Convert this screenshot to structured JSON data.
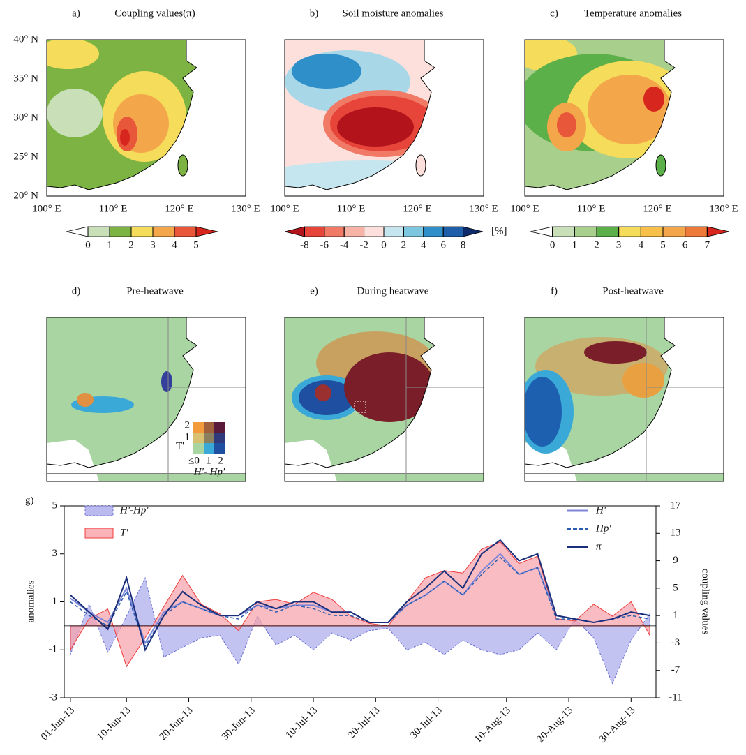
{
  "maps": {
    "lat_labels": [
      "40° N",
      "35° N",
      "30° N",
      "25° N",
      "20° N"
    ],
    "lon_labels": [
      "100° E",
      "110° E",
      "120° E",
      "130° E"
    ],
    "panels": [
      {
        "label": "a)",
        "title": "Coupling  values(π)",
        "colorbar": {
          "colors": [
            "#ffffff",
            "#c8dfb8",
            "#7cb342",
            "#f5dc5a",
            "#f4a64a",
            "#e8573a",
            "#d7261e"
          ],
          "ticks": [
            0,
            1,
            2,
            3,
            4,
            5
          ]
        }
      },
      {
        "label": "b)",
        "title": "Soil  moisture anomalies",
        "colorbar": {
          "colors": [
            "#b3141b",
            "#e8453a",
            "#f07a66",
            "#f6b3a6",
            "#fde0dc",
            "#c6e6ef",
            "#7cc7df",
            "#2f8fc9",
            "#1f5ea8",
            "#0d2b6b"
          ],
          "ticks": [
            -8,
            -6,
            -4,
            -2,
            0,
            2,
            4,
            6,
            8
          ],
          "unit": "[%]"
        }
      },
      {
        "label": "c)",
        "title": "Temperature anomalies",
        "colorbar": {
          "colors": [
            "#ffffff",
            "#c8dfb8",
            "#a9cf8c",
            "#5cb04a",
            "#f5dc5a",
            "#f7c04a",
            "#f4a64a",
            "#ee7a3a",
            "#d7261e"
          ],
          "ticks": [
            0,
            1,
            2,
            3,
            4,
            5,
            6,
            7
          ]
        }
      },
      {
        "label": "d)",
        "title": "Pre-heatwave"
      },
      {
        "label": "e)",
        "title": "During heatwave"
      },
      {
        "label": "f)",
        "title": "Post-heatwave"
      }
    ],
    "legend_2d": {
      "y_labels": [
        "2",
        "1"
      ],
      "y_title": "T'",
      "x_labels": [
        "≤0",
        "1",
        "2"
      ],
      "x_title": "H'- Hp'"
    }
  },
  "chart_data": {
    "type": "line",
    "label": "g)",
    "ylabel": "anomalies",
    "y2label": "coupling values",
    "x": [
      "2013-06-01",
      "2013-06-04",
      "2013-06-07",
      "2013-06-10",
      "2013-06-13",
      "2013-06-16",
      "2013-06-19",
      "2013-06-22",
      "2013-06-25",
      "2013-06-28",
      "2013-07-01",
      "2013-07-04",
      "2013-07-07",
      "2013-07-10",
      "2013-07-13",
      "2013-07-16",
      "2013-07-19",
      "2013-07-22",
      "2013-07-25",
      "2013-07-28",
      "2013-07-31",
      "2013-08-03",
      "2013-08-06",
      "2013-08-09",
      "2013-08-12",
      "2013-08-15",
      "2013-08-18",
      "2013-08-21",
      "2013-08-24",
      "2013-08-27",
      "2013-08-30",
      "2013-09-02"
    ],
    "xlim": [
      "2013-05-31",
      "2013-09-03"
    ],
    "xticks": [
      {
        "value": "2013-06-01",
        "label": "01-Jun-13"
      },
      {
        "value": "2013-06-10",
        "label": "10-Jun-13"
      },
      {
        "value": "2013-06-20",
        "label": "20-Jun-13"
      },
      {
        "value": "2013-06-30",
        "label": "30-Jun-13"
      },
      {
        "value": "2013-07-10",
        "label": "10-Jul-13"
      },
      {
        "value": "2013-07-20",
        "label": "20-Jul-13"
      },
      {
        "value": "2013-07-30",
        "label": "30-Jul-13"
      },
      {
        "value": "2013-08-10",
        "label": "10-Aug-13"
      },
      {
        "value": "2013-08-20",
        "label": "20-Aug-13"
      },
      {
        "value": "2013-08-30",
        "label": "30-Aug-13"
      }
    ],
    "ylim": [
      -3,
      5
    ],
    "yticks": [
      -3,
      -1,
      1,
      3,
      5
    ],
    "y2lim": [
      -11,
      17
    ],
    "y2ticks": [
      -11,
      -7,
      -3,
      1,
      5,
      9,
      13,
      17
    ],
    "series": [
      {
        "name": "H'-Hp'",
        "style": "area",
        "color": "#6a6fd0",
        "fill": "#a9a9ec",
        "dash": true,
        "legend": "upper left",
        "values": [
          -1.2,
          0.9,
          -1.1,
          0.4,
          2.0,
          -1.3,
          -0.9,
          -0.5,
          -0.4,
          -1.6,
          0.4,
          -0.8,
          -0.4,
          -1.0,
          -0.3,
          -0.6,
          -0.2,
          -0.1,
          -1.0,
          -0.7,
          -1.2,
          -0.6,
          -1.0,
          -1.2,
          -1.0,
          -0.3,
          -1.0,
          0.3,
          -0.5,
          -2.4,
          -0.6,
          0.5
        ]
      },
      {
        "name": "T'",
        "style": "area",
        "color": "#f03c3c",
        "fill": "#f7a0a8",
        "dash": false,
        "legend": "upper left",
        "values": [
          -1.0,
          0.3,
          0.7,
          -1.7,
          -0.5,
          0.8,
          2.1,
          0.9,
          0.5,
          -0.2,
          1.0,
          1.1,
          0.9,
          1.4,
          1.1,
          0.4,
          0.1,
          0.0,
          1.0,
          2.0,
          2.3,
          2.2,
          3.2,
          3.5,
          2.6,
          2.9,
          0.3,
          0.2,
          0.9,
          0.4,
          1.0,
          -0.4
        ]
      },
      {
        "name": "H'",
        "style": "line",
        "axis": "y2",
        "color": "#7d86d8",
        "dash": false,
        "legend": "upper right",
        "values": [
          3.5,
          1.5,
          0,
          5,
          -3,
          1.5,
          3,
          2,
          1,
          1,
          2.5,
          2,
          2.5,
          2.5,
          1.5,
          1.5,
          0,
          0,
          2.5,
          4,
          6,
          4,
          7.5,
          10,
          7,
          8,
          1,
          0.5,
          0,
          0.5,
          1.5,
          1
        ]
      },
      {
        "name": "Hp'",
        "style": "line",
        "axis": "y2",
        "color": "#2a5db0",
        "dash": true,
        "legend": "upper right",
        "values": [
          3,
          1,
          -0.5,
          4.5,
          -3.5,
          1,
          3,
          2,
          1,
          0.5,
          2.5,
          1.5,
          2.5,
          2,
          1,
          1,
          0,
          0,
          2.5,
          4,
          6,
          4,
          7,
          9.5,
          7,
          8,
          0.5,
          0.5,
          0,
          0.5,
          1,
          0.5
        ]
      },
      {
        "name": "π",
        "style": "line",
        "axis": "y2",
        "color": "#1b2f7a",
        "dash": false,
        "legend": "upper right",
        "values": [
          4,
          1.5,
          -1,
          6.5,
          -4,
          1,
          4.5,
          2.5,
          1,
          1,
          3,
          2,
          3,
          3,
          1.5,
          1.5,
          0,
          0,
          3,
          5,
          7.5,
          5,
          10,
          12,
          9,
          10,
          1,
          0.5,
          0,
          0.5,
          1.5,
          1
        ]
      }
    ]
  }
}
